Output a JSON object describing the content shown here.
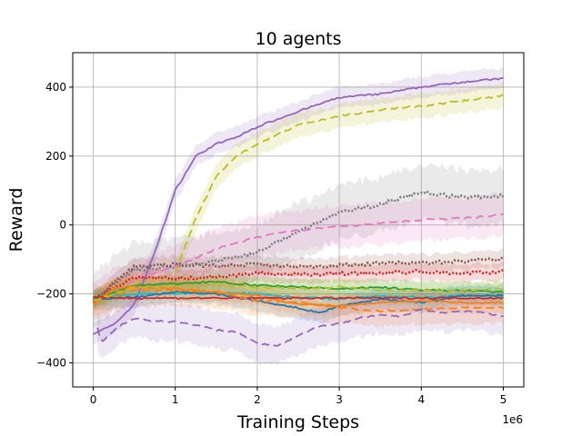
{
  "chart_data": {
    "type": "line",
    "title": "10 agents",
    "xlabel": "Training Steps",
    "ylabel": "Reward",
    "x_offset_text": "1e6",
    "xlim": [
      -0.25,
      5.25
    ],
    "ylim": [
      -470,
      500
    ],
    "xticks": [
      0,
      1,
      2,
      3,
      4,
      5
    ],
    "yticks": [
      -400,
      -200,
      0,
      200,
      400
    ],
    "grid": true,
    "legend": "none",
    "series": [
      {
        "color": "#9467bd",
        "style": "solid",
        "x": [
          0,
          0.25,
          0.5,
          0.75,
          1.0,
          1.25,
          1.5,
          1.75,
          2.0,
          2.5,
          3.0,
          3.5,
          4.0,
          4.5,
          5.0
        ],
        "y": [
          -315,
          -290,
          -230,
          -80,
          100,
          200,
          235,
          255,
          285,
          330,
          370,
          380,
          400,
          415,
          425
        ],
        "band": 30
      },
      {
        "color": "#bcbd22",
        "style": "dashed",
        "x": [
          1.0,
          1.25,
          1.5,
          1.75,
          2.0,
          2.5,
          3.0,
          3.5,
          4.0,
          4.5,
          5.0
        ],
        "y": [
          -140,
          20,
          140,
          200,
          235,
          290,
          315,
          335,
          345,
          360,
          375
        ],
        "band": 35
      },
      {
        "color": "#7f7f7f",
        "style": "dotted",
        "x": [
          0,
          0.5,
          1.0,
          1.5,
          2.0,
          2.5,
          3.0,
          3.5,
          4.0,
          4.5,
          5.0
        ],
        "y": [
          -220,
          -130,
          -120,
          -105,
          -80,
          -20,
          35,
          60,
          95,
          80,
          85
        ],
        "band": 80
      },
      {
        "color": "#e377c2",
        "style": "dashed",
        "x": [
          0,
          0.5,
          1.0,
          1.5,
          2.0,
          2.5,
          3.0,
          3.5,
          4.0,
          4.5,
          5.0
        ],
        "y": [
          -220,
          -160,
          -120,
          -70,
          -35,
          -15,
          -5,
          5,
          15,
          20,
          30
        ],
        "band": 60
      },
      {
        "color": "#8c564b",
        "style": "dotted",
        "x": [
          0,
          0.5,
          1.0,
          1.5,
          2.0,
          2.5,
          3.0,
          3.5,
          4.0,
          4.5,
          5.0
        ],
        "y": [
          -220,
          -120,
          -115,
          -118,
          -115,
          -120,
          -118,
          -110,
          -110,
          -105,
          -100
        ],
        "band": 25
      },
      {
        "color": "#d62728",
        "style": "dotted",
        "x": [
          0,
          0.5,
          1.0,
          1.5,
          2.0,
          2.5,
          3.0,
          3.5,
          4.0,
          4.5,
          5.0
        ],
        "y": [
          -220,
          -150,
          -155,
          -150,
          -140,
          -145,
          -140,
          -140,
          -135,
          -140,
          -135
        ],
        "band": 25
      },
      {
        "color": "#2ca02c",
        "style": "solid",
        "x": [
          0,
          0.5,
          1.0,
          1.5,
          2.0,
          2.5,
          3.0,
          3.5,
          4.0,
          4.5,
          5.0
        ],
        "y": [
          -215,
          -175,
          -170,
          -165,
          -175,
          -180,
          -185,
          -180,
          -190,
          -190,
          -195
        ],
        "band": 25
      },
      {
        "color": "#17becf",
        "style": "solid",
        "x": [
          0,
          0.5,
          1.0,
          1.5,
          2.0,
          2.5,
          3.0,
          3.5,
          4.0,
          4.5,
          5.0
        ],
        "y": [
          -215,
          -200,
          -200,
          -195,
          -200,
          -210,
          -215,
          -205,
          -210,
          -205,
          -205
        ],
        "band": 25
      },
      {
        "color": "#1f77b4",
        "style": "solid",
        "x": [
          0,
          0.5,
          1.0,
          1.5,
          2.0,
          2.5,
          2.75,
          3.0,
          3.5,
          4.0,
          4.5,
          5.0
        ],
        "y": [
          -215,
          -210,
          -195,
          -200,
          -220,
          -240,
          -255,
          -235,
          -215,
          -225,
          -205,
          -205
        ],
        "band": 30
      },
      {
        "color": "#ff7f0e",
        "style": "solid",
        "x": [
          0,
          0.25,
          0.5,
          1.0,
          1.5,
          2.0,
          2.5,
          3.0,
          3.5,
          4.0,
          4.5,
          5.0
        ],
        "y": [
          -230,
          -185,
          -180,
          -185,
          -195,
          -205,
          -230,
          -235,
          -225,
          -220,
          -225,
          -225
        ],
        "band": 30
      },
      {
        "color": "#d62728",
        "style": "solid",
        "x": [
          0,
          0.5,
          1.0,
          2.0,
          3.0,
          4.0,
          5.0
        ],
        "y": [
          -210,
          -212,
          -212,
          -212,
          -212,
          -212,
          -212
        ],
        "band": 0
      },
      {
        "color": "#ff7f0e",
        "style": "dashed",
        "x": [
          0,
          0.5,
          1.0,
          1.5,
          2.0,
          2.5,
          3.0,
          3.5,
          4.0,
          4.5,
          5.0
        ],
        "y": [
          -220,
          -190,
          -190,
          -195,
          -220,
          -225,
          -240,
          -250,
          -245,
          -240,
          -240
        ],
        "band": 45
      },
      {
        "color": "#bcbd22",
        "style": "dashed",
        "x": [
          0,
          0.5,
          1.0,
          1.5,
          2.0,
          2.5,
          3.0,
          3.5,
          4.0,
          4.5,
          5.0
        ],
        "y": [
          -220,
          -180,
          -180,
          -175,
          -180,
          -185,
          -180,
          -190,
          -190,
          -190,
          -185
        ],
        "band": 25
      },
      {
        "color": "#9467bd",
        "style": "dashed",
        "x": [
          0.05,
          0.1,
          0.3,
          0.5,
          0.75,
          1.0,
          1.25,
          1.5,
          1.75,
          2.0,
          2.25,
          2.5,
          2.75,
          3.0,
          3.25,
          3.5,
          3.75,
          4.0,
          4.25,
          4.5,
          4.75,
          5.0
        ],
        "y": [
          -300,
          -340,
          -295,
          -270,
          -280,
          -280,
          -290,
          -305,
          -310,
          -345,
          -350,
          -320,
          -295,
          -285,
          -270,
          -260,
          -265,
          -245,
          -255,
          -250,
          -255,
          -265
        ],
        "band": 55
      }
    ]
  }
}
